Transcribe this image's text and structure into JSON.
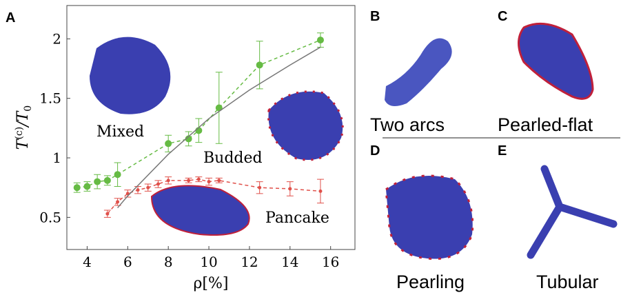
{
  "chart_data": {
    "type": "line",
    "panel": "A",
    "x_label": "ρ[%]",
    "y_label": {
      "base": "T",
      "sup": "(c)",
      "mid": "/T",
      "sub": "0"
    },
    "xlim": [
      3,
      17.2
    ],
    "xticks": [
      4,
      6,
      8,
      10,
      12,
      14,
      16
    ],
    "ylim": [
      0.23,
      2.28
    ],
    "yticks": [
      0.5,
      1,
      1.5,
      2
    ],
    "annotations": [
      "Mixed",
      "Budded",
      "Pancake"
    ],
    "series": [
      {
        "color": "#66bb44",
        "dashed": true,
        "markers": true,
        "x": [
          3.5,
          4,
          4.5,
          5,
          5.5,
          8,
          9,
          9.5,
          10.5,
          12.5,
          15.5
        ],
        "values": [
          0.75,
          0.76,
          0.8,
          0.81,
          0.86,
          1.12,
          1.16,
          1.23,
          1.42,
          1.78,
          1.99
        ],
        "errors": [
          0.04,
          0.04,
          0.06,
          0.04,
          0.1,
          0.07,
          0.06,
          0.1,
          0.3,
          0.2,
          0.06
        ]
      },
      {
        "color": "#e0504a",
        "dashed": true,
        "markers": true,
        "x": [
          5,
          5.5,
          6,
          6.5,
          7,
          7.5,
          8,
          9,
          9.5,
          10,
          10.5,
          12.5,
          14,
          15.5
        ],
        "values": [
          0.53,
          0.63,
          0.7,
          0.73,
          0.75,
          0.78,
          0.81,
          0.81,
          0.82,
          0.8,
          0.81,
          0.75,
          0.74,
          0.72
        ],
        "errors": [
          0.03,
          0.03,
          0.03,
          0.03,
          0.03,
          0.03,
          0.03,
          0.02,
          0.02,
          0.03,
          0.02,
          0.05,
          0.06,
          0.1
        ]
      },
      {
        "color": "#777777",
        "dashed": false,
        "markers": false,
        "x": [
          5.5,
          6,
          8,
          10,
          12,
          14,
          15.5
        ],
        "values": [
          0.58,
          0.68,
          1.03,
          1.33,
          1.57,
          1.78,
          1.93
        ]
      }
    ]
  },
  "panels": [
    {
      "label": "B",
      "caption": "Two arcs"
    },
    {
      "label": "C",
      "caption": "Pearled-flat"
    },
    {
      "label": "D",
      "caption": "Pearling"
    },
    {
      "label": "E",
      "caption": "Tubular"
    }
  ]
}
